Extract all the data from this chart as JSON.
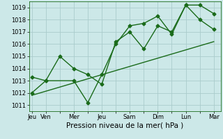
{
  "background_color": "#cce8e8",
  "grid_color": "#aacccc",
  "line_color": "#1a6b1a",
  "marker": "D",
  "marker_size": 2.5,
  "line_width": 1.0,
  "xlabel": "Pression niveau de la mer( hPa )",
  "xlabel_fontsize": 7.5,
  "xtick_labels": [
    "Jeu",
    "Ven",
    "",
    "Mer",
    "",
    "Jeu",
    "",
    "Sam",
    "",
    "Dim",
    "",
    "Lun",
    "",
    "Mar"
  ],
  "xtick_positions": [
    0,
    1,
    2,
    3,
    4,
    5,
    6,
    7,
    8,
    9,
    10,
    11,
    12,
    13
  ],
  "xtick_show": [
    true,
    true,
    false,
    true,
    false,
    true,
    false,
    true,
    false,
    true,
    false,
    true,
    false,
    true
  ],
  "ylim": [
    1010.5,
    1019.5
  ],
  "yticks": [
    1011,
    1012,
    1013,
    1014,
    1015,
    1016,
    1017,
    1018,
    1019
  ],
  "ytick_fontsize": 6,
  "xtick_fontsize": 6,
  "series1_x": [
    0,
    1,
    3,
    4,
    5,
    6,
    7,
    8,
    9,
    10,
    11,
    12,
    13
  ],
  "series1_y": [
    1012.0,
    1013.0,
    1013.0,
    1011.2,
    1013.5,
    1016.0,
    1017.5,
    1017.7,
    1018.3,
    1016.8,
    1019.2,
    1018.0,
    1017.2
  ],
  "series2_x": [
    0,
    1,
    2,
    3,
    4,
    5,
    6,
    7,
    8,
    9,
    10,
    11,
    12,
    13
  ],
  "series2_y": [
    1013.3,
    1013.0,
    1015.0,
    1014.0,
    1013.5,
    1012.7,
    1016.2,
    1017.0,
    1015.6,
    1017.5,
    1017.0,
    1019.2,
    1019.2,
    1018.5
  ],
  "series3_x": [
    0,
    13
  ],
  "series3_y": [
    1011.8,
    1016.2
  ],
  "xlim": [
    -0.2,
    13.5
  ]
}
